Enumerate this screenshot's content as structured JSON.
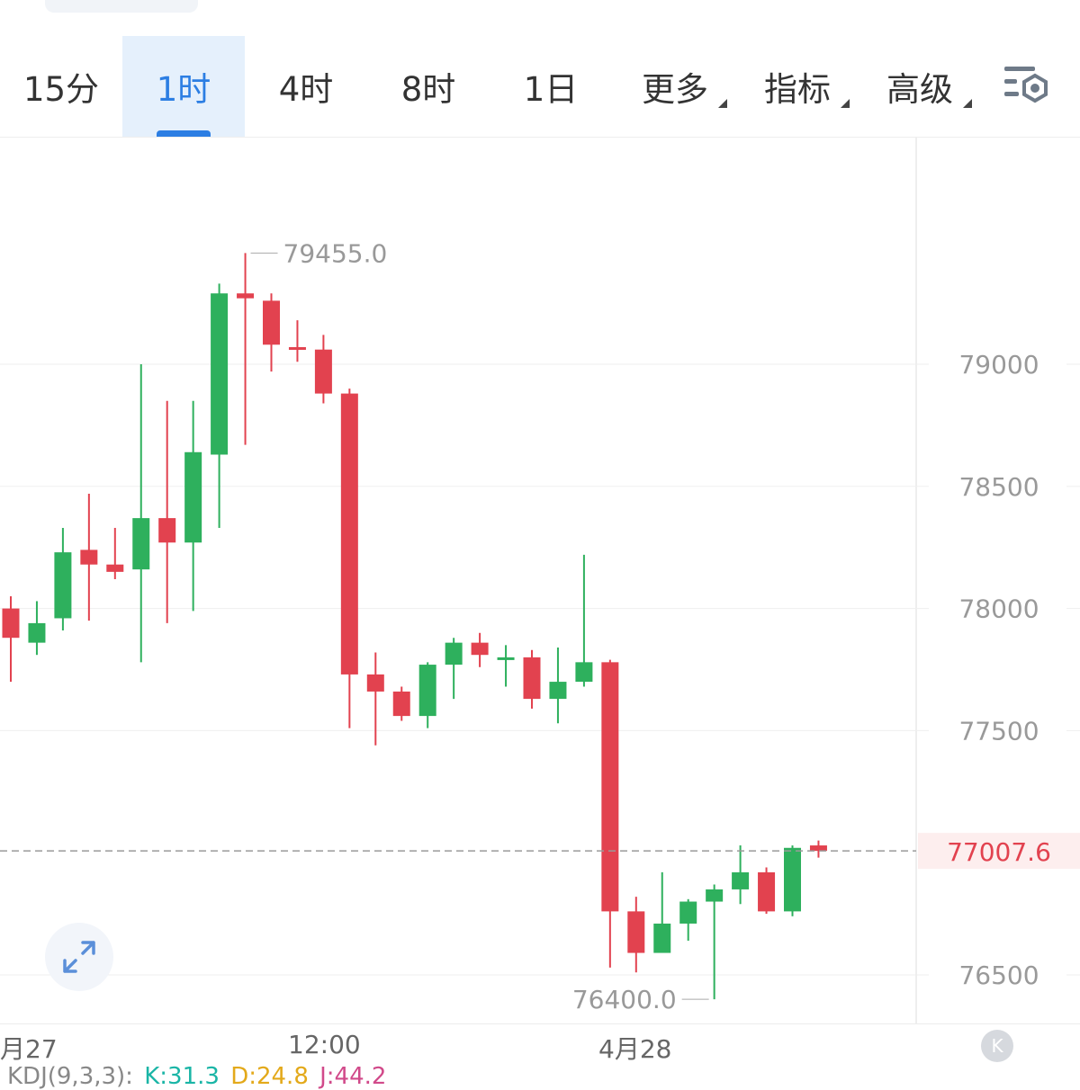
{
  "toolbar": {
    "tabs": [
      {
        "label": "15分"
      },
      {
        "label": "1时"
      },
      {
        "label": "4时"
      },
      {
        "label": "8时"
      },
      {
        "label": "1日"
      },
      {
        "label": "更多"
      },
      {
        "label": "指标"
      },
      {
        "label": "高级"
      }
    ],
    "active_tab": "1时",
    "settings_icon": "chart-settings-icon"
  },
  "chart_data": {
    "type": "candlestick",
    "y_ticks": [
      "79000",
      "78500",
      "78000",
      "77500",
      "76500"
    ],
    "x_labels": [
      "月27",
      "12:00",
      "4月28"
    ],
    "max_label": "79455.0",
    "min_label": "76400.0",
    "current_price": "77007.6",
    "colors": {
      "up": "#2eb05d",
      "down": "#e2424f",
      "price": "#e2424f",
      "axis_text": "#999999"
    },
    "candles": [
      {
        "o": 78000,
        "h": 78050,
        "l": 77700,
        "c": 77880
      },
      {
        "o": 77860,
        "h": 78030,
        "l": 77810,
        "c": 77940
      },
      {
        "o": 77960,
        "h": 78330,
        "l": 77910,
        "c": 78230
      },
      {
        "o": 78240,
        "h": 78470,
        "l": 77950,
        "c": 78180
      },
      {
        "o": 78180,
        "h": 78330,
        "l": 78120,
        "c": 78150
      },
      {
        "o": 78160,
        "h": 79000,
        "l": 77780,
        "c": 78370
      },
      {
        "o": 78370,
        "h": 78850,
        "l": 77940,
        "c": 78270
      },
      {
        "o": 78270,
        "h": 78850,
        "l": 77990,
        "c": 78640
      },
      {
        "o": 78630,
        "h": 79330,
        "l": 78330,
        "c": 79290
      },
      {
        "o": 79290,
        "h": 79455,
        "l": 78670,
        "c": 79270
      },
      {
        "o": 79260,
        "h": 79290,
        "l": 78970,
        "c": 79080
      },
      {
        "o": 79070,
        "h": 79180,
        "l": 79010,
        "c": 79060
      },
      {
        "o": 79060,
        "h": 79120,
        "l": 78840,
        "c": 78880
      },
      {
        "o": 78880,
        "h": 78900,
        "l": 77510,
        "c": 77730
      },
      {
        "o": 77730,
        "h": 77820,
        "l": 77440,
        "c": 77660
      },
      {
        "o": 77660,
        "h": 77680,
        "l": 77540,
        "c": 77560
      },
      {
        "o": 77560,
        "h": 77780,
        "l": 77510,
        "c": 77770
      },
      {
        "o": 77770,
        "h": 77880,
        "l": 77630,
        "c": 77860
      },
      {
        "o": 77860,
        "h": 77900,
        "l": 77760,
        "c": 77810
      },
      {
        "o": 77800,
        "h": 77850,
        "l": 77680,
        "c": 77800
      },
      {
        "o": 77800,
        "h": 77830,
        "l": 77590,
        "c": 77630
      },
      {
        "o": 77630,
        "h": 77840,
        "l": 77530,
        "c": 77700
      },
      {
        "o": 77700,
        "h": 78220,
        "l": 77680,
        "c": 77780
      },
      {
        "o": 77780,
        "h": 77790,
        "l": 76530,
        "c": 76760
      },
      {
        "o": 76760,
        "h": 76820,
        "l": 76510,
        "c": 76590
      },
      {
        "o": 76590,
        "h": 76920,
        "l": 76590,
        "c": 76710
      },
      {
        "o": 76710,
        "h": 76810,
        "l": 76640,
        "c": 76800
      },
      {
        "o": 76800,
        "h": 76870,
        "l": 76400,
        "c": 76850
      },
      {
        "o": 76850,
        "h": 77030,
        "l": 76790,
        "c": 76920
      },
      {
        "o": 76920,
        "h": 76940,
        "l": 76750,
        "c": 76760
      },
      {
        "o": 76760,
        "h": 77030,
        "l": 76740,
        "c": 77020
      },
      {
        "o": 77030,
        "h": 77050,
        "l": 76980,
        "c": 77007.6
      }
    ]
  },
  "kdj": {
    "label": "KDJ(9,3,3):",
    "k": "K:31.3",
    "d": "D:24.8",
    "j": "J:44.2",
    "colors": {
      "label": "#888888",
      "k": "#1ab5a6",
      "d": "#e3a91a",
      "j": "#d14a8a"
    }
  },
  "controls": {
    "expand_icon": "expand-arrows-icon",
    "kline_toggle_label": "K"
  }
}
